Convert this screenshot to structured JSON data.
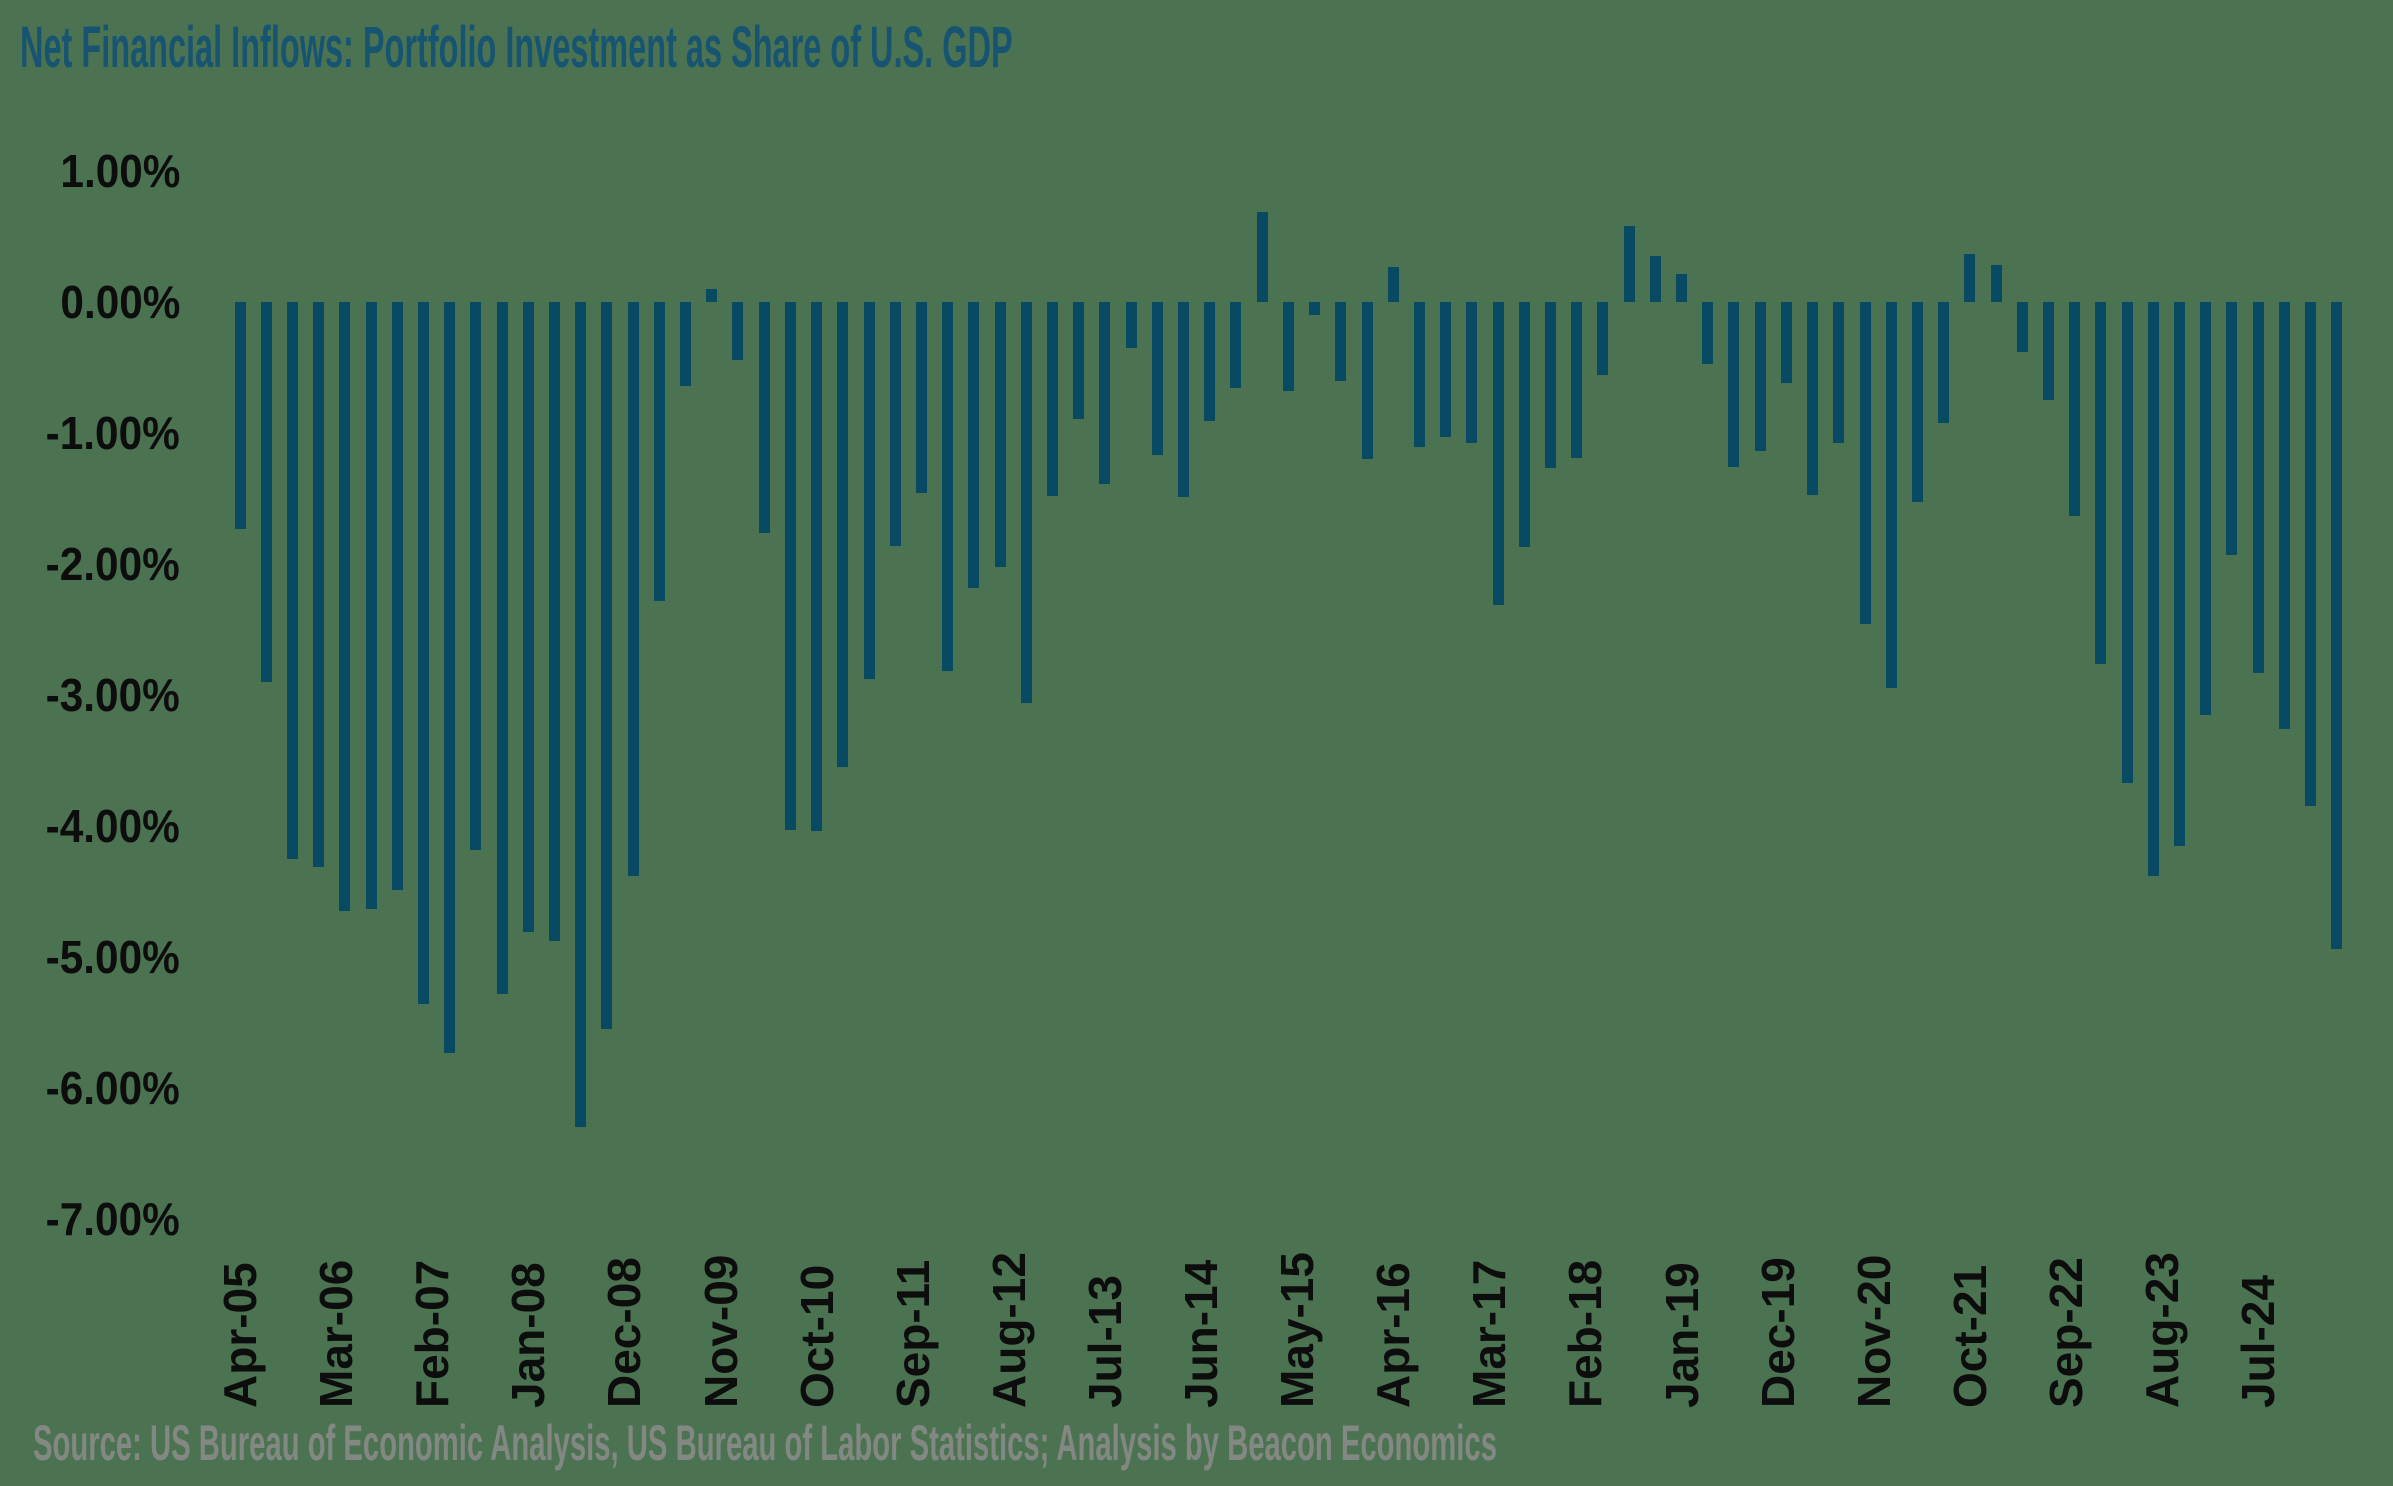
{
  "title": "Net Financial Inflows: Portfolio Investment as Share of U.S. GDP",
  "source": "Source: US Bureau of Economic Analysis, US Bureau of Labor Statistics; Analysis by Beacon Economics",
  "colors": {
    "background": "#4b7351",
    "bar": "#074a62",
    "title_text": "#175472",
    "axis_text": "#0d0d0d",
    "source_text": "#838883"
  },
  "chart_data": {
    "type": "bar",
    "title": "Net Financial Inflows: Portfolio Investment as Share of U.S. GDP",
    "xlabel": "",
    "ylabel": "",
    "ylim": [
      -7.0,
      1.0
    ],
    "grid": false,
    "legend": false,
    "y_tick_labels": [
      "1.00%",
      "0.00%",
      "-1.00%",
      "-2.00%",
      "-3.00%",
      "-4.00%",
      "-5.00%",
      "-6.00%",
      "-7.00%"
    ],
    "y_tick_values": [
      1,
      0,
      -1,
      -2,
      -3,
      -4,
      -5,
      -6,
      -7
    ],
    "x_tick_labels": [
      "Apr-05",
      "Mar-06",
      "Feb-07",
      "Jan-08",
      "Dec-08",
      "Nov-09",
      "Oct-10",
      "Sep-11",
      "Aug-12",
      "Jul-13",
      "Jun-14",
      "May-15",
      "Apr-16",
      "Mar-17",
      "Feb-18",
      "Jan-19",
      "Dec-19",
      "Nov-20",
      "Oct-21",
      "Sep-22",
      "Aug-23",
      "Jul-24"
    ],
    "x_tick_interval_months": 11,
    "categories": [
      "Apr-05",
      "Jul-05",
      "Oct-05",
      "Jan-06",
      "Apr-06",
      "Jul-06",
      "Oct-06",
      "Jan-07",
      "Apr-07",
      "Jul-07",
      "Oct-07",
      "Jan-08",
      "Apr-08",
      "Jul-08",
      "Oct-08",
      "Jan-09",
      "Apr-09",
      "Jul-09",
      "Oct-09",
      "Jan-10",
      "Apr-10",
      "Jul-10",
      "Oct-10",
      "Jan-11",
      "Apr-11",
      "Jul-11",
      "Oct-11",
      "Jan-12",
      "Apr-12",
      "Jul-12",
      "Oct-12",
      "Jan-13",
      "Apr-13",
      "Jul-13",
      "Oct-13",
      "Jan-14",
      "Apr-14",
      "Jul-14",
      "Oct-14",
      "Jan-15",
      "Apr-15",
      "Jul-15",
      "Oct-15",
      "Jan-16",
      "Apr-16",
      "Jul-16",
      "Oct-16",
      "Jan-17",
      "Apr-17",
      "Jul-17",
      "Oct-17",
      "Jan-18",
      "Apr-18",
      "Jul-18",
      "Oct-18",
      "Jan-19",
      "Apr-19",
      "Jul-19",
      "Oct-19",
      "Jan-20",
      "Apr-20",
      "Jul-20",
      "Oct-20",
      "Jan-21",
      "Apr-21",
      "Jul-21",
      "Oct-21",
      "Jan-22",
      "Apr-22",
      "Jul-22",
      "Oct-22",
      "Jan-23",
      "Apr-23",
      "Jul-23",
      "Oct-23",
      "Jan-24",
      "Apr-24",
      "Jul-24",
      "Oct-24",
      "Jan-25",
      "Apr-25"
    ],
    "values": [
      -1.73,
      -2.9,
      -4.25,
      -4.31,
      -4.65,
      -4.63,
      -4.49,
      -5.36,
      -5.73,
      -4.18,
      -5.28,
      -4.81,
      -4.88,
      -6.3,
      -5.55,
      -4.38,
      -2.28,
      -0.64,
      0.1,
      -0.44,
      -1.76,
      -4.03,
      -4.04,
      -3.55,
      -2.88,
      -1.86,
      -1.46,
      -2.82,
      -2.18,
      -2.02,
      -3.06,
      -1.48,
      -0.89,
      -1.39,
      -0.35,
      -1.17,
      -1.49,
      -0.91,
      -0.66,
      0.69,
      -0.68,
      -0.1,
      -0.6,
      -1.2,
      0.27,
      -1.11,
      -1.03,
      -1.08,
      -2.31,
      -1.87,
      -1.27,
      -1.19,
      -0.56,
      0.58,
      0.35,
      0.21,
      -0.47,
      -1.26,
      -1.14,
      -0.62,
      -1.47,
      -1.08,
      -2.46,
      -2.95,
      -1.53,
      -0.92,
      0.37,
      0.28,
      -0.38,
      -0.75,
      -1.63,
      -2.76,
      -3.67,
      -4.38,
      -4.15,
      -3.15,
      -1.93,
      -2.83,
      -3.26,
      -3.85,
      -4.94
    ]
  }
}
